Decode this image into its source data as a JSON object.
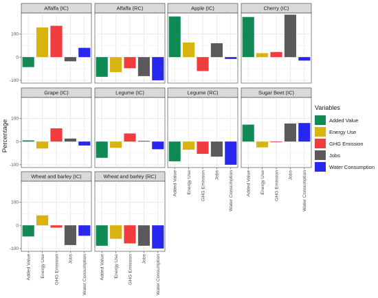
{
  "chart_data": {
    "type": "bar",
    "ylabel": "Percentage",
    "legend_title": "Variables",
    "legend_position": "right",
    "categories": [
      "Added Value",
      "Energy Use",
      "GHG Emission",
      "Jobs",
      "Water Consumption"
    ],
    "colors": [
      "#0f8a55",
      "#d9b30f",
      "#f03c3c",
      "#5a5a5a",
      "#2727f0"
    ],
    "yticks": [
      -100,
      0,
      100
    ],
    "ylim": [
      -112,
      190
    ],
    "grid": true,
    "facets": [
      {
        "title": "Alfalfa (IC)",
        "values": [
          -43,
          128,
          135,
          -18,
          40
        ]
      },
      {
        "title": "Alfalfa (RC)",
        "values": [
          -85,
          -65,
          -48,
          -82,
          -100
        ]
      },
      {
        "title": "Apple (IC)",
        "values": [
          175,
          63,
          -60,
          60,
          -8
        ]
      },
      {
        "title": "Cherry (IC)",
        "values": [
          173,
          17,
          22,
          183,
          -15
        ]
      },
      {
        "title": "Grape (IC)",
        "values": [
          5,
          -30,
          57,
          13,
          -17
        ]
      },
      {
        "title": "Legume (IC)",
        "values": [
          -70,
          -27,
          35,
          3,
          -33
        ]
      },
      {
        "title": "Legume (RC)",
        "values": [
          -85,
          -35,
          -53,
          -65,
          -100
        ]
      },
      {
        "title": "Sugar Beet (IC)",
        "values": [
          73,
          -25,
          -3,
          78,
          80
        ]
      },
      {
        "title": "Wheat and barley (IC)",
        "values": [
          -48,
          43,
          -10,
          -85,
          -45
        ]
      },
      {
        "title": "Wheat and barley (RC)",
        "values": [
          -88,
          -58,
          -78,
          -88,
          -100
        ]
      }
    ]
  }
}
